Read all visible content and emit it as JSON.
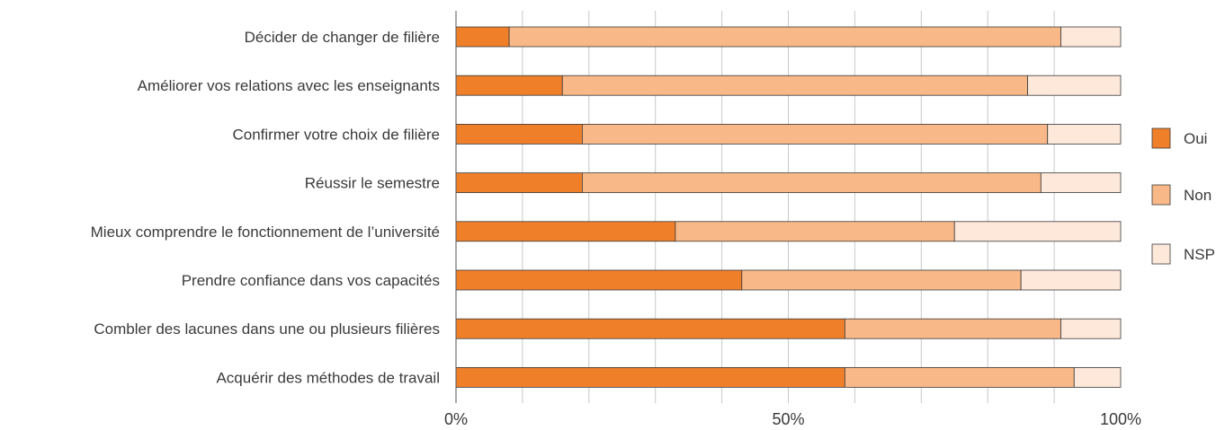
{
  "chart_data": {
    "type": "bar",
    "orientation": "horizontal",
    "stacked": true,
    "categories": [
      "Décider de changer de filière",
      "Améliorer vos relations avec les enseignants",
      "Confirmer votre choix de filière",
      "Réussir le semestre",
      "Mieux comprendre le fonctionnement de l’université",
      "Prendre confiance dans vos capacités",
      "Combler des lacunes dans une ou plusieurs filières",
      "Acquérir des méthodes de travail"
    ],
    "series": [
      {
        "name": "Oui",
        "color": "#f07f2a",
        "values": [
          8,
          16,
          19,
          19,
          33,
          43,
          58.5,
          58.5
        ]
      },
      {
        "name": "Non",
        "color": "#f9b887",
        "values": [
          83,
          70,
          70,
          69,
          42,
          42,
          32.5,
          34.5
        ]
      },
      {
        "name": "NSP",
        "color": "#fde8da",
        "values": [
          9,
          14,
          11,
          12,
          25,
          15,
          9,
          7
        ]
      }
    ],
    "x_ticks": [
      "0%",
      "50%",
      "100%"
    ],
    "xlim": [
      0,
      100
    ],
    "grid": "vertical minor gridlines every 10%",
    "legend": "right"
  }
}
